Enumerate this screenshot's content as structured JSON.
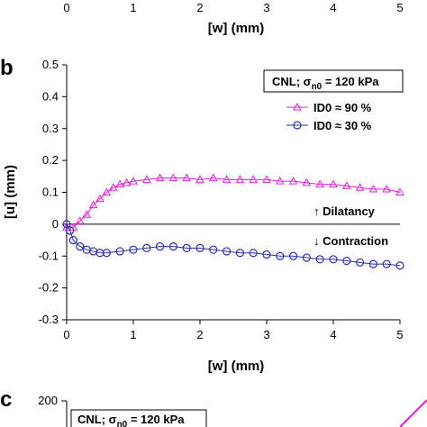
{
  "colors": {
    "dense": "#e020d8",
    "loose": "#2b2fb0",
    "axis": "#000000"
  },
  "top_strip": {
    "xticks": [
      "0",
      "1",
      "2",
      "3",
      "4",
      "5"
    ],
    "xlabel": "[w]  (mm)"
  },
  "panel_b": {
    "letter": "b",
    "condition": "CNL; σn0 = 120 kPa",
    "annot_up": "↑ Dilatancy",
    "annot_down": "↓ Contraction"
  },
  "panel_c": {
    "letter": "c",
    "ytick_top": "200",
    "condition": "CNL; σn0 = 120 kPa"
  },
  "chart_data": {
    "type": "scatter",
    "xlabel": "[w]  (mm)",
    "ylabel": "[u]  (mm)",
    "xlim": [
      0,
      5
    ],
    "ylim": [
      -0.3,
      0.5
    ],
    "xticks": [
      "0",
      "1",
      "2",
      "3",
      "4",
      "5"
    ],
    "yticks": [
      "0.5",
      "0.4",
      "0.3",
      "0.2",
      "0.1",
      "0",
      "-0.1",
      "-0.2",
      "-0.3"
    ],
    "grid": false,
    "legend_position": "top-right",
    "series": [
      {
        "name": "ID0 ≈ 90 %",
        "marker": "triangle",
        "x": [
          0.0,
          0.1,
          0.2,
          0.3,
          0.4,
          0.5,
          0.6,
          0.7,
          0.8,
          0.9,
          1.0,
          1.2,
          1.4,
          1.6,
          1.8,
          2.0,
          2.2,
          2.4,
          2.6,
          2.8,
          3.0,
          3.2,
          3.4,
          3.6,
          3.8,
          4.0,
          4.2,
          4.4,
          4.6,
          4.8,
          5.0
        ],
        "y": [
          -0.01,
          -0.01,
          0.01,
          0.03,
          0.06,
          0.08,
          0.1,
          0.115,
          0.125,
          0.13,
          0.135,
          0.14,
          0.145,
          0.145,
          0.145,
          0.14,
          0.145,
          0.14,
          0.14,
          0.14,
          0.14,
          0.135,
          0.135,
          0.13,
          0.125,
          0.125,
          0.12,
          0.115,
          0.11,
          0.11,
          0.1
        ]
      },
      {
        "name": "ID0 ≈ 30 %",
        "marker": "circle",
        "x": [
          0.0,
          0.05,
          0.1,
          0.2,
          0.3,
          0.4,
          0.5,
          0.6,
          0.8,
          1.0,
          1.2,
          1.4,
          1.6,
          1.8,
          2.0,
          2.2,
          2.4,
          2.6,
          2.8,
          3.0,
          3.2,
          3.4,
          3.6,
          3.8,
          4.0,
          4.2,
          4.4,
          4.6,
          4.8,
          5.0
        ],
        "y": [
          0.0,
          -0.02,
          -0.05,
          -0.07,
          -0.08,
          -0.085,
          -0.09,
          -0.09,
          -0.085,
          -0.08,
          -0.075,
          -0.07,
          -0.07,
          -0.075,
          -0.075,
          -0.08,
          -0.085,
          -0.09,
          -0.09,
          -0.095,
          -0.1,
          -0.1,
          -0.105,
          -0.11,
          -0.11,
          -0.115,
          -0.12,
          -0.125,
          -0.125,
          -0.13
        ]
      }
    ]
  }
}
